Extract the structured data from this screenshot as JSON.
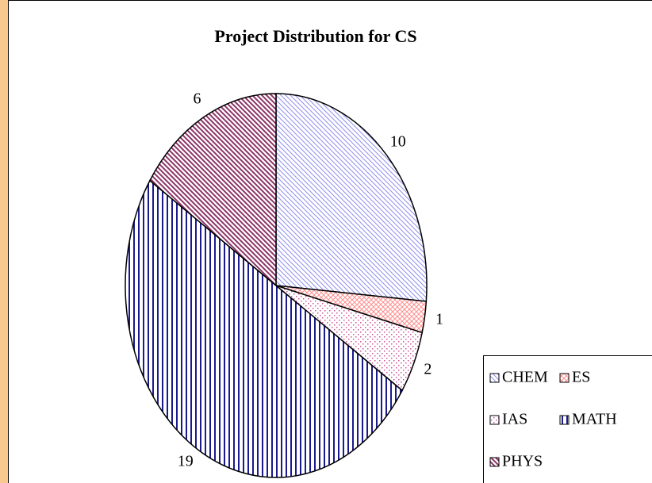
{
  "chart_data": {
    "type": "pie",
    "title": "Project Distribution for CS",
    "categories": [
      "CHEM",
      "ES",
      "IAS",
      "MATH",
      "PHYS"
    ],
    "values": [
      10,
      1,
      2,
      19,
      6
    ],
    "colors": [
      "#8f8fef",
      "#ff8f8f",
      "#cc5599",
      "#1a1a8c",
      "#8c3366"
    ],
    "legend": "bottom-right"
  }
}
